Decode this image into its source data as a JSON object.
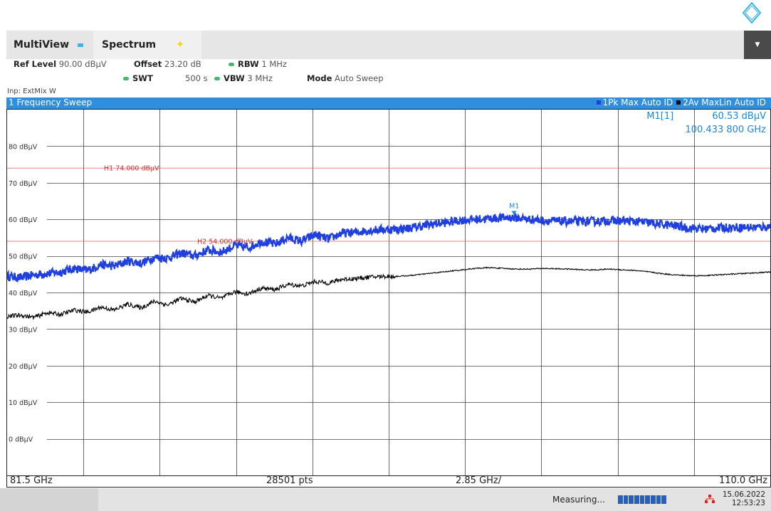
{
  "window": {
    "tabs": [
      {
        "label": "MultiView"
      },
      {
        "label": "Spectrum"
      }
    ]
  },
  "settings": {
    "ref_level_label": "Ref Level",
    "ref_level_value": "90.00 dBµV",
    "offset_label": "Offset",
    "offset_value": "23.20 dB",
    "rbw_label": "RBW",
    "rbw_value": "1 MHz",
    "swt_label": "SWT",
    "swt_value": "500 s",
    "vbw_label": "VBW",
    "vbw_value": "3 MHz",
    "mode_label": "Mode",
    "mode_value": "Auto Sweep",
    "input_label": "Inp: ExtMix W"
  },
  "diagram": {
    "title": "1 Frequency Sweep",
    "trace1_label": "1Pk Max Auto ID",
    "trace2_label": "2Av MaxLin Auto ID",
    "marker_name": "M1[1]",
    "marker_level": "60.53 dBµV",
    "marker_freq": "100.433 800 GHz",
    "marker_flag": "M1",
    "h1_label": "H1 74.000 dBµV",
    "h2_label": "H2 54.000 dBµV"
  },
  "footer": {
    "start": "81.5 GHz",
    "points": "28501 pts",
    "span_per_div": "2.85 GHz/",
    "stop": "110.0 GHz"
  },
  "status": {
    "measuring": "Measuring...",
    "progress": 1.0,
    "date": "15.06.2022",
    "time": "12:53:23"
  },
  "colors": {
    "accent": "#2f8fde",
    "trace1": "#1f3fe0",
    "trace2": "#000000",
    "limit": "#e05050",
    "marker": "#1a88d8"
  },
  "chart_data": {
    "type": "line",
    "x_unit": "GHz",
    "y_unit": "dBµV",
    "xlim": [
      81.5,
      110.0
    ],
    "ylim": [
      -10,
      90
    ],
    "y_ticks": [
      {
        "value": 80,
        "label": "80 dBµV"
      },
      {
        "value": 70,
        "label": "70 dBµV"
      },
      {
        "value": 60,
        "label": "60 dBµV"
      },
      {
        "value": 50,
        "label": "50 dBµV"
      },
      {
        "value": 40,
        "label": "40 dBµV"
      },
      {
        "value": 30,
        "label": "30 dBµV"
      },
      {
        "value": 20,
        "label": "20 dBµV"
      },
      {
        "value": 10,
        "label": "10 dBµV"
      },
      {
        "value": 0,
        "label": "0 dBµV"
      }
    ],
    "hlines": [
      {
        "name": "H1",
        "value": 74.0
      },
      {
        "name": "H2",
        "value": 54.0
      }
    ],
    "marker": {
      "name": "M1",
      "x": 100.4338,
      "y": 60.53
    },
    "series": [
      {
        "name": "1Pk Max Auto ID",
        "x": [
          81.5,
          82.0,
          82.5,
          83.0,
          83.5,
          84.0,
          84.5,
          85.0,
          85.5,
          86.0,
          86.5,
          87.0,
          87.5,
          88.0,
          88.5,
          89.0,
          89.5,
          90.0,
          90.5,
          91.0,
          91.5,
          92.0,
          92.5,
          93.0,
          93.5,
          94.0,
          94.5,
          95.0,
          95.5,
          96.0,
          96.5,
          97.0,
          97.5,
          98.0,
          98.5,
          99.0,
          99.5,
          100.0,
          100.4,
          101.0,
          101.5,
          102.0,
          102.5,
          103.0,
          103.5,
          104.0,
          104.5,
          105.0,
          105.5,
          106.0,
          106.5,
          107.0,
          107.5,
          108.0,
          108.5,
          109.0,
          109.5,
          110.0
        ],
        "values": [
          44.5,
          44.0,
          44.8,
          45.2,
          45.6,
          46.6,
          46.0,
          47.6,
          47.2,
          48.6,
          48.0,
          49.6,
          49.4,
          50.8,
          50.0,
          51.6,
          51.0,
          52.8,
          52.2,
          54.0,
          53.2,
          55.0,
          54.0,
          55.8,
          54.6,
          56.2,
          56.4,
          57.0,
          57.2,
          57.3,
          57.6,
          58.2,
          58.8,
          59.2,
          59.8,
          60.0,
          60.2,
          60.4,
          60.5,
          60.0,
          59.7,
          59.5,
          59.4,
          59.4,
          59.5,
          59.6,
          59.6,
          59.4,
          59.0,
          58.6,
          58.2,
          57.6,
          57.4,
          57.6,
          57.8,
          57.8,
          57.8,
          58.0
        ]
      },
      {
        "name": "2Av MaxLin Auto ID",
        "x": [
          81.5,
          82.0,
          82.5,
          83.0,
          83.5,
          84.0,
          84.5,
          85.0,
          85.5,
          86.0,
          86.5,
          87.0,
          87.5,
          88.0,
          88.5,
          89.0,
          89.5,
          90.0,
          90.5,
          91.0,
          91.5,
          92.0,
          92.5,
          93.0,
          93.5,
          94.0,
          94.5,
          95.0,
          95.5,
          96.0,
          96.5,
          97.0,
          97.5,
          98.0,
          98.5,
          99.0,
          99.5,
          100.0,
          100.5,
          101.0,
          101.5,
          102.0,
          102.5,
          103.0,
          103.5,
          104.0,
          104.5,
          105.0,
          105.5,
          106.0,
          106.5,
          107.0,
          107.5,
          108.0,
          108.5,
          109.0,
          109.5,
          110.0
        ],
        "values": [
          33.5,
          33.8,
          33.2,
          34.5,
          34.0,
          35.2,
          34.6,
          36.0,
          35.2,
          36.8,
          35.8,
          37.6,
          36.6,
          38.4,
          37.4,
          39.2,
          38.4,
          40.2,
          39.6,
          41.2,
          40.8,
          42.2,
          41.8,
          43.0,
          42.6,
          43.6,
          43.8,
          44.2,
          44.4,
          44.4,
          44.6,
          45.0,
          45.4,
          45.8,
          46.2,
          46.6,
          46.8,
          46.6,
          46.4,
          46.4,
          46.6,
          46.5,
          46.4,
          46.2,
          46.2,
          46.4,
          46.2,
          46.0,
          45.6,
          45.1,
          44.8,
          44.6,
          44.6,
          44.8,
          45.0,
          45.2,
          45.4,
          45.6
        ]
      }
    ]
  }
}
